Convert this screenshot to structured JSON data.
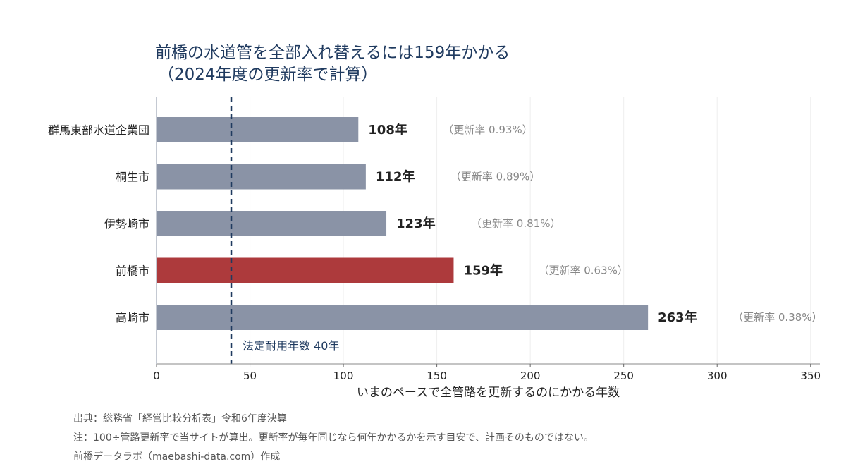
{
  "title": {
    "line1": "前橋の水道管を全部入れ替えるには159年かかる",
    "line2": "（2024年度の更新率で計算）"
  },
  "chart_data": {
    "type": "bar",
    "orientation": "horizontal",
    "categories": [
      "群馬東部水道企業団",
      "桐生市",
      "伊勢崎市",
      "前橋市",
      "高崎市"
    ],
    "values": [
      108,
      112,
      123,
      159,
      263
    ],
    "value_labels": [
      "108年",
      "112年",
      "123年",
      "159年",
      "263年"
    ],
    "rate_labels": [
      "（更新率 0.93%）",
      "（更新率 0.89%）",
      "（更新率 0.81%）",
      "（更新率 0.63%）",
      "（更新率 0.38%）"
    ],
    "highlight_category": "前橋市",
    "xlabel": "いまのペースで全管路を更新するのにかかる年数",
    "ylabel": "",
    "xlim": [
      0,
      355
    ],
    "xticks": [
      0,
      50,
      100,
      150,
      200,
      250,
      300,
      350
    ],
    "grid": "vertical",
    "reference_line": {
      "value": 40,
      "label": "法定耐用年数 40年"
    },
    "colors": {
      "bar": "#8a93a6",
      "highlight": "#ad3a3c",
      "reference": "#1f3a5f",
      "value_text": "#222222",
      "rate_text": "#888888",
      "title": "#1f3a5f"
    }
  },
  "footnotes": {
    "source": "出典：総務省「経営比較分析表」令和6年度決算",
    "note": "注：100÷管路更新率で当サイトが算出。更新率が毎年同じなら何年かかるかを示す目安で、計画そのものではない。",
    "credit": "前橋データラボ（maebashi-data.com）作成"
  }
}
